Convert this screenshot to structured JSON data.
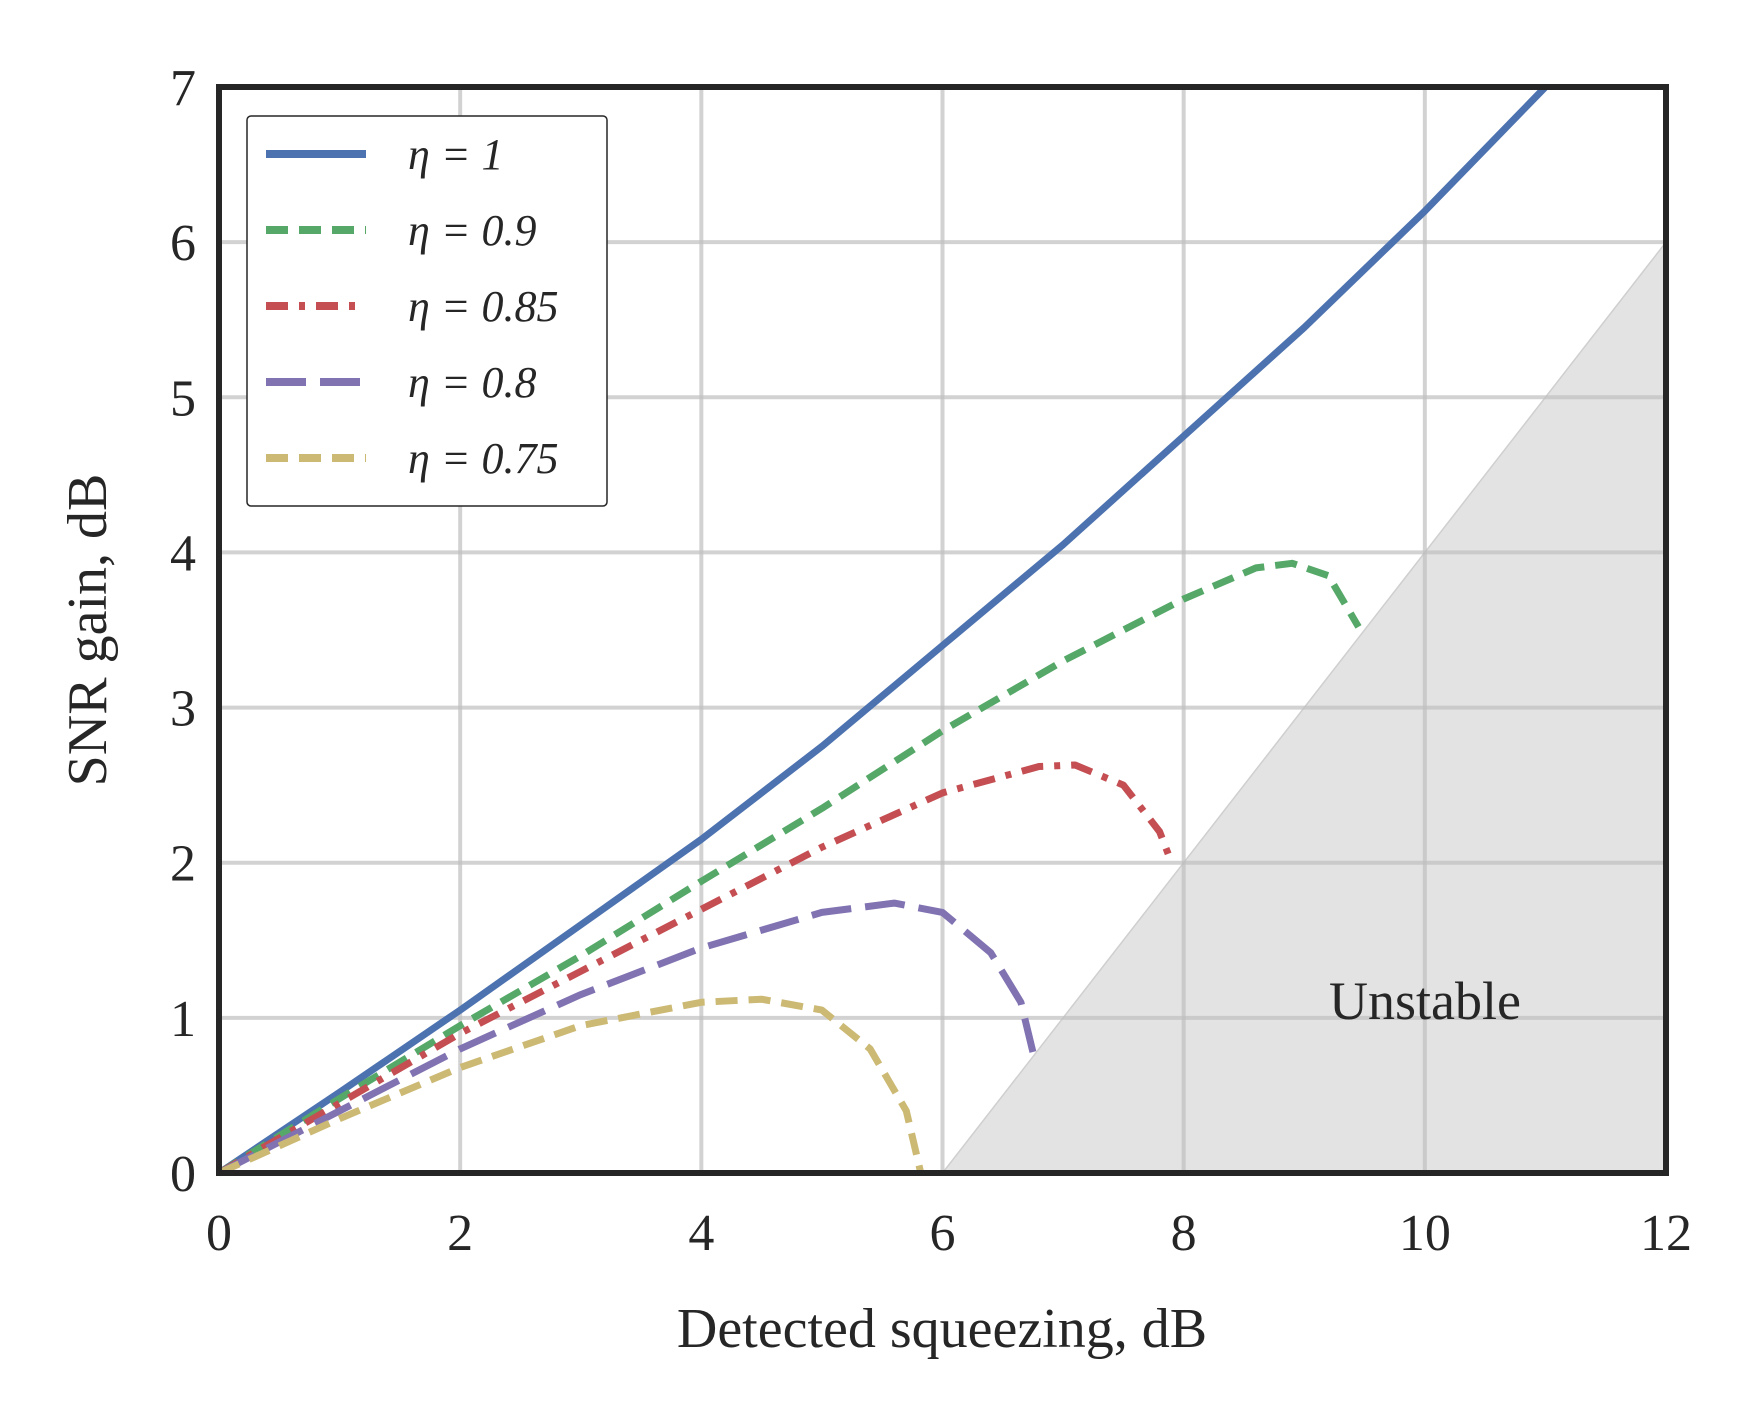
{
  "chart_data": {
    "type": "line",
    "title": "",
    "xlabel": "Detected squeezing, dB",
    "ylabel": "SNR gain, dB",
    "xlim": [
      0,
      12
    ],
    "ylim": [
      0,
      7
    ],
    "xticks": [
      "0",
      "2",
      "4",
      "6",
      "8",
      "10",
      "12"
    ],
    "yticks": [
      "0",
      "1",
      "2",
      "3",
      "4",
      "5",
      "6",
      "7"
    ],
    "grid": true,
    "legend_position": "top-left",
    "shaded_region": {
      "label": "Unstable",
      "boundary": [
        [
          6,
          0
        ],
        [
          12,
          6
        ]
      ],
      "color": "#e3e3e3"
    },
    "series": [
      {
        "name": "η = 1",
        "color": "#4c72b0",
        "style": "solid",
        "x": [
          0,
          1,
          2,
          3,
          4,
          5,
          6,
          7,
          8,
          9,
          10,
          11
        ],
        "y": [
          0,
          0.52,
          1.05,
          1.6,
          2.15,
          2.75,
          3.4,
          4.05,
          4.75,
          5.45,
          6.2,
          7.0
        ]
      },
      {
        "name": "η = 0.9",
        "color": "#55a868",
        "style": "dashed",
        "x": [
          0,
          1,
          2,
          3,
          4,
          5,
          6,
          7,
          8,
          8.6,
          8.9,
          9.2,
          9.45
        ],
        "y": [
          0,
          0.48,
          0.95,
          1.4,
          1.88,
          2.35,
          2.85,
          3.3,
          3.7,
          3.9,
          3.93,
          3.85,
          3.52
        ]
      },
      {
        "name": "η = 0.85",
        "color": "#c44e52",
        "style": "dashdot",
        "x": [
          0,
          1,
          2,
          3,
          4,
          5,
          6,
          6.8,
          7.1,
          7.5,
          7.8,
          7.9
        ],
        "y": [
          0,
          0.45,
          0.9,
          1.3,
          1.7,
          2.1,
          2.45,
          2.62,
          2.63,
          2.5,
          2.2,
          2.0
        ]
      },
      {
        "name": "η = 0.8",
        "color": "#8172b2",
        "style": "longdash",
        "x": [
          0,
          1,
          2,
          3,
          4,
          5,
          5.6,
          6.0,
          6.4,
          6.65,
          6.75
        ],
        "y": [
          0,
          0.4,
          0.8,
          1.15,
          1.45,
          1.68,
          1.74,
          1.68,
          1.42,
          1.1,
          0.78
        ]
      },
      {
        "name": "η = 0.75",
        "color": "#ccb974",
        "style": "dashed",
        "x": [
          0,
          1,
          2,
          3,
          4,
          4.5,
          5.0,
          5.4,
          5.7,
          5.82
        ],
        "y": [
          0,
          0.35,
          0.68,
          0.95,
          1.1,
          1.12,
          1.05,
          0.8,
          0.4,
          0
        ]
      }
    ]
  }
}
